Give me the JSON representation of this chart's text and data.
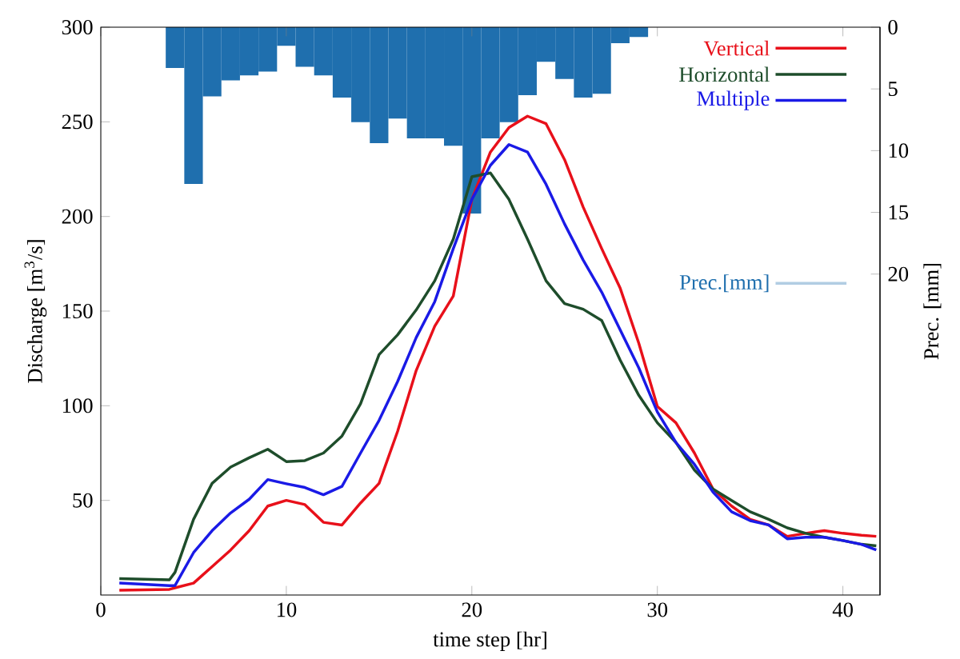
{
  "chart_data": {
    "type": "line",
    "xlabel": "time step [hr]",
    "ylabel": "Discharge [m$^{3}$/s]",
    "y2label": "Prec. [mm]",
    "xlim": [
      0,
      42
    ],
    "xticks": [
      0,
      10,
      20,
      30,
      40
    ],
    "ylim": [
      0,
      300
    ],
    "yticks": [
      50,
      100,
      150,
      200,
      250,
      300
    ],
    "y2lim": [
      46,
      0
    ],
    "y2ticks": [
      0,
      5,
      10,
      15,
      20
    ],
    "legend": "top right",
    "series": [
      {
        "name": "Vertical",
        "color": "#e8101a",
        "x": [
          1,
          3.7,
          4,
          5,
          6,
          7,
          8,
          9,
          10,
          11,
          12,
          13,
          14,
          15,
          16,
          17,
          18,
          19,
          20,
          21,
          22,
          23,
          24,
          25,
          26,
          27,
          28,
          29,
          30,
          31,
          32,
          33,
          34,
          35,
          36,
          37,
          38,
          39,
          40,
          41,
          41.8
        ],
        "values": [
          2.5,
          3,
          3.8,
          6.3,
          15,
          23.8,
          34,
          47,
          50,
          47.8,
          38.4,
          37,
          48.6,
          59,
          86.5,
          118.6,
          142,
          158,
          209,
          234,
          247,
          253,
          249,
          230,
          205,
          183,
          162,
          133,
          99.6,
          91,
          75,
          56,
          47,
          40,
          37,
          31,
          32.6,
          34,
          32.6,
          31.6,
          31
        ]
      },
      {
        "name": "Horizontal",
        "color": "#1e4d2b",
        "x": [
          1,
          3.7,
          4,
          5,
          6,
          7,
          8,
          9,
          10,
          11,
          12,
          13,
          14,
          15,
          16,
          17,
          18,
          19,
          20,
          21,
          22,
          23,
          24,
          25,
          26,
          27,
          28,
          29,
          30,
          31,
          32,
          33,
          34,
          35,
          36,
          37,
          38,
          39,
          40,
          41,
          41.8
        ],
        "values": [
          8.7,
          8,
          12,
          40,
          59,
          67.6,
          72.5,
          77,
          70.5,
          71,
          75,
          84,
          101,
          127,
          137.5,
          150.6,
          166,
          188,
          221,
          223,
          209,
          188,
          166,
          154,
          151,
          145,
          124,
          105.5,
          91,
          80.6,
          66,
          56,
          50,
          44,
          40,
          35.5,
          32.6,
          30.5,
          28.8,
          26.8,
          26
        ]
      },
      {
        "name": "Multiple",
        "color": "#1a1ae6",
        "x": [
          1,
          3.7,
          4,
          5,
          6,
          7,
          8,
          9,
          10,
          11,
          12,
          13,
          14,
          15,
          16,
          17,
          18,
          19,
          20,
          21,
          22,
          23,
          24,
          25,
          26,
          27,
          28,
          29,
          30,
          31,
          32,
          33,
          34,
          35,
          36,
          37,
          38,
          39,
          40,
          41,
          41.8
        ],
        "values": [
          6.3,
          5,
          5,
          22.4,
          34,
          43.4,
          50.6,
          61,
          58.8,
          56.8,
          53,
          57.4,
          75,
          92.3,
          112.8,
          136,
          155,
          183,
          209,
          227,
          238,
          234,
          217,
          196,
          177,
          160,
          140,
          120,
          96.7,
          80.6,
          69,
          54.4,
          44,
          39.3,
          37,
          29.7,
          30.5,
          30.5,
          28.8,
          26.8,
          23.8
        ]
      },
      {
        "name": "Prec.[mm]",
        "type": "bar",
        "axis": "y2",
        "color": "#1f6fae",
        "x": [
          4,
          5,
          6,
          7,
          8,
          9,
          10,
          11,
          12,
          13,
          14,
          15,
          16,
          17,
          18,
          19,
          20,
          21,
          22,
          23,
          24,
          25,
          26,
          27,
          28,
          29
        ],
        "values": [
          3.3,
          12.7,
          5.6,
          4.3,
          3.9,
          3.6,
          1.5,
          3.2,
          3.9,
          5.7,
          7.7,
          9.4,
          7.4,
          9.0,
          9.0,
          9.6,
          15.1,
          9.0,
          7.7,
          5.5,
          2.8,
          4.2,
          5.7,
          5.4,
          1.3,
          0.8
        ]
      }
    ]
  }
}
